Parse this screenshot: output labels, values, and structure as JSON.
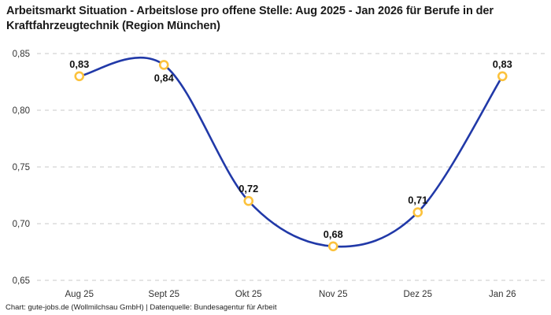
{
  "header": {
    "title": "Arbeitsmarkt Situation - Arbeitslose pro offene Stelle: Aug 2025 - Jan 2026 für Berufe in der Kraftfahrzeugtechnik (Region München)"
  },
  "footer": {
    "text": "Chart: gute-jobs.de (Wollmilchsau GmbH) | Datenquelle: Bundesagentur für Arbeit"
  },
  "colors": {
    "line": "#2139a8",
    "marker_ring": "#fcc23c",
    "marker_fill": "#ffffff",
    "grid": "#c9c9c9",
    "axis_text": "#333333",
    "point_label": "#111111"
  },
  "chart_data": {
    "type": "line",
    "title": "Arbeitsmarkt Situation - Arbeitslose pro offene Stelle: Aug 2025 - Jan 2026 für Berufe in der Kraftfahrzeugtechnik (Region München)",
    "categories": [
      "Aug 25",
      "Sept 25",
      "Okt 25",
      "Nov 25",
      "Dez 25",
      "Jan 26"
    ],
    "values": [
      0.83,
      0.84,
      0.72,
      0.68,
      0.71,
      0.83
    ],
    "value_labels": [
      "0,83",
      "0,84",
      "0,72",
      "0,68",
      "0,71",
      "0,83"
    ],
    "label_positions": [
      "above",
      "below",
      "above",
      "above",
      "above",
      "above"
    ],
    "xlabel": "",
    "ylabel": "",
    "ylim": [
      0.65,
      0.85
    ],
    "yticks": [
      0.85,
      0.8,
      0.75,
      0.7,
      0.65
    ],
    "ytick_labels": [
      "0,85",
      "0,80",
      "0,75",
      "0,70",
      "0,65"
    ],
    "grid": "horizontal-dashed",
    "legend": "none",
    "smooth": true
  }
}
